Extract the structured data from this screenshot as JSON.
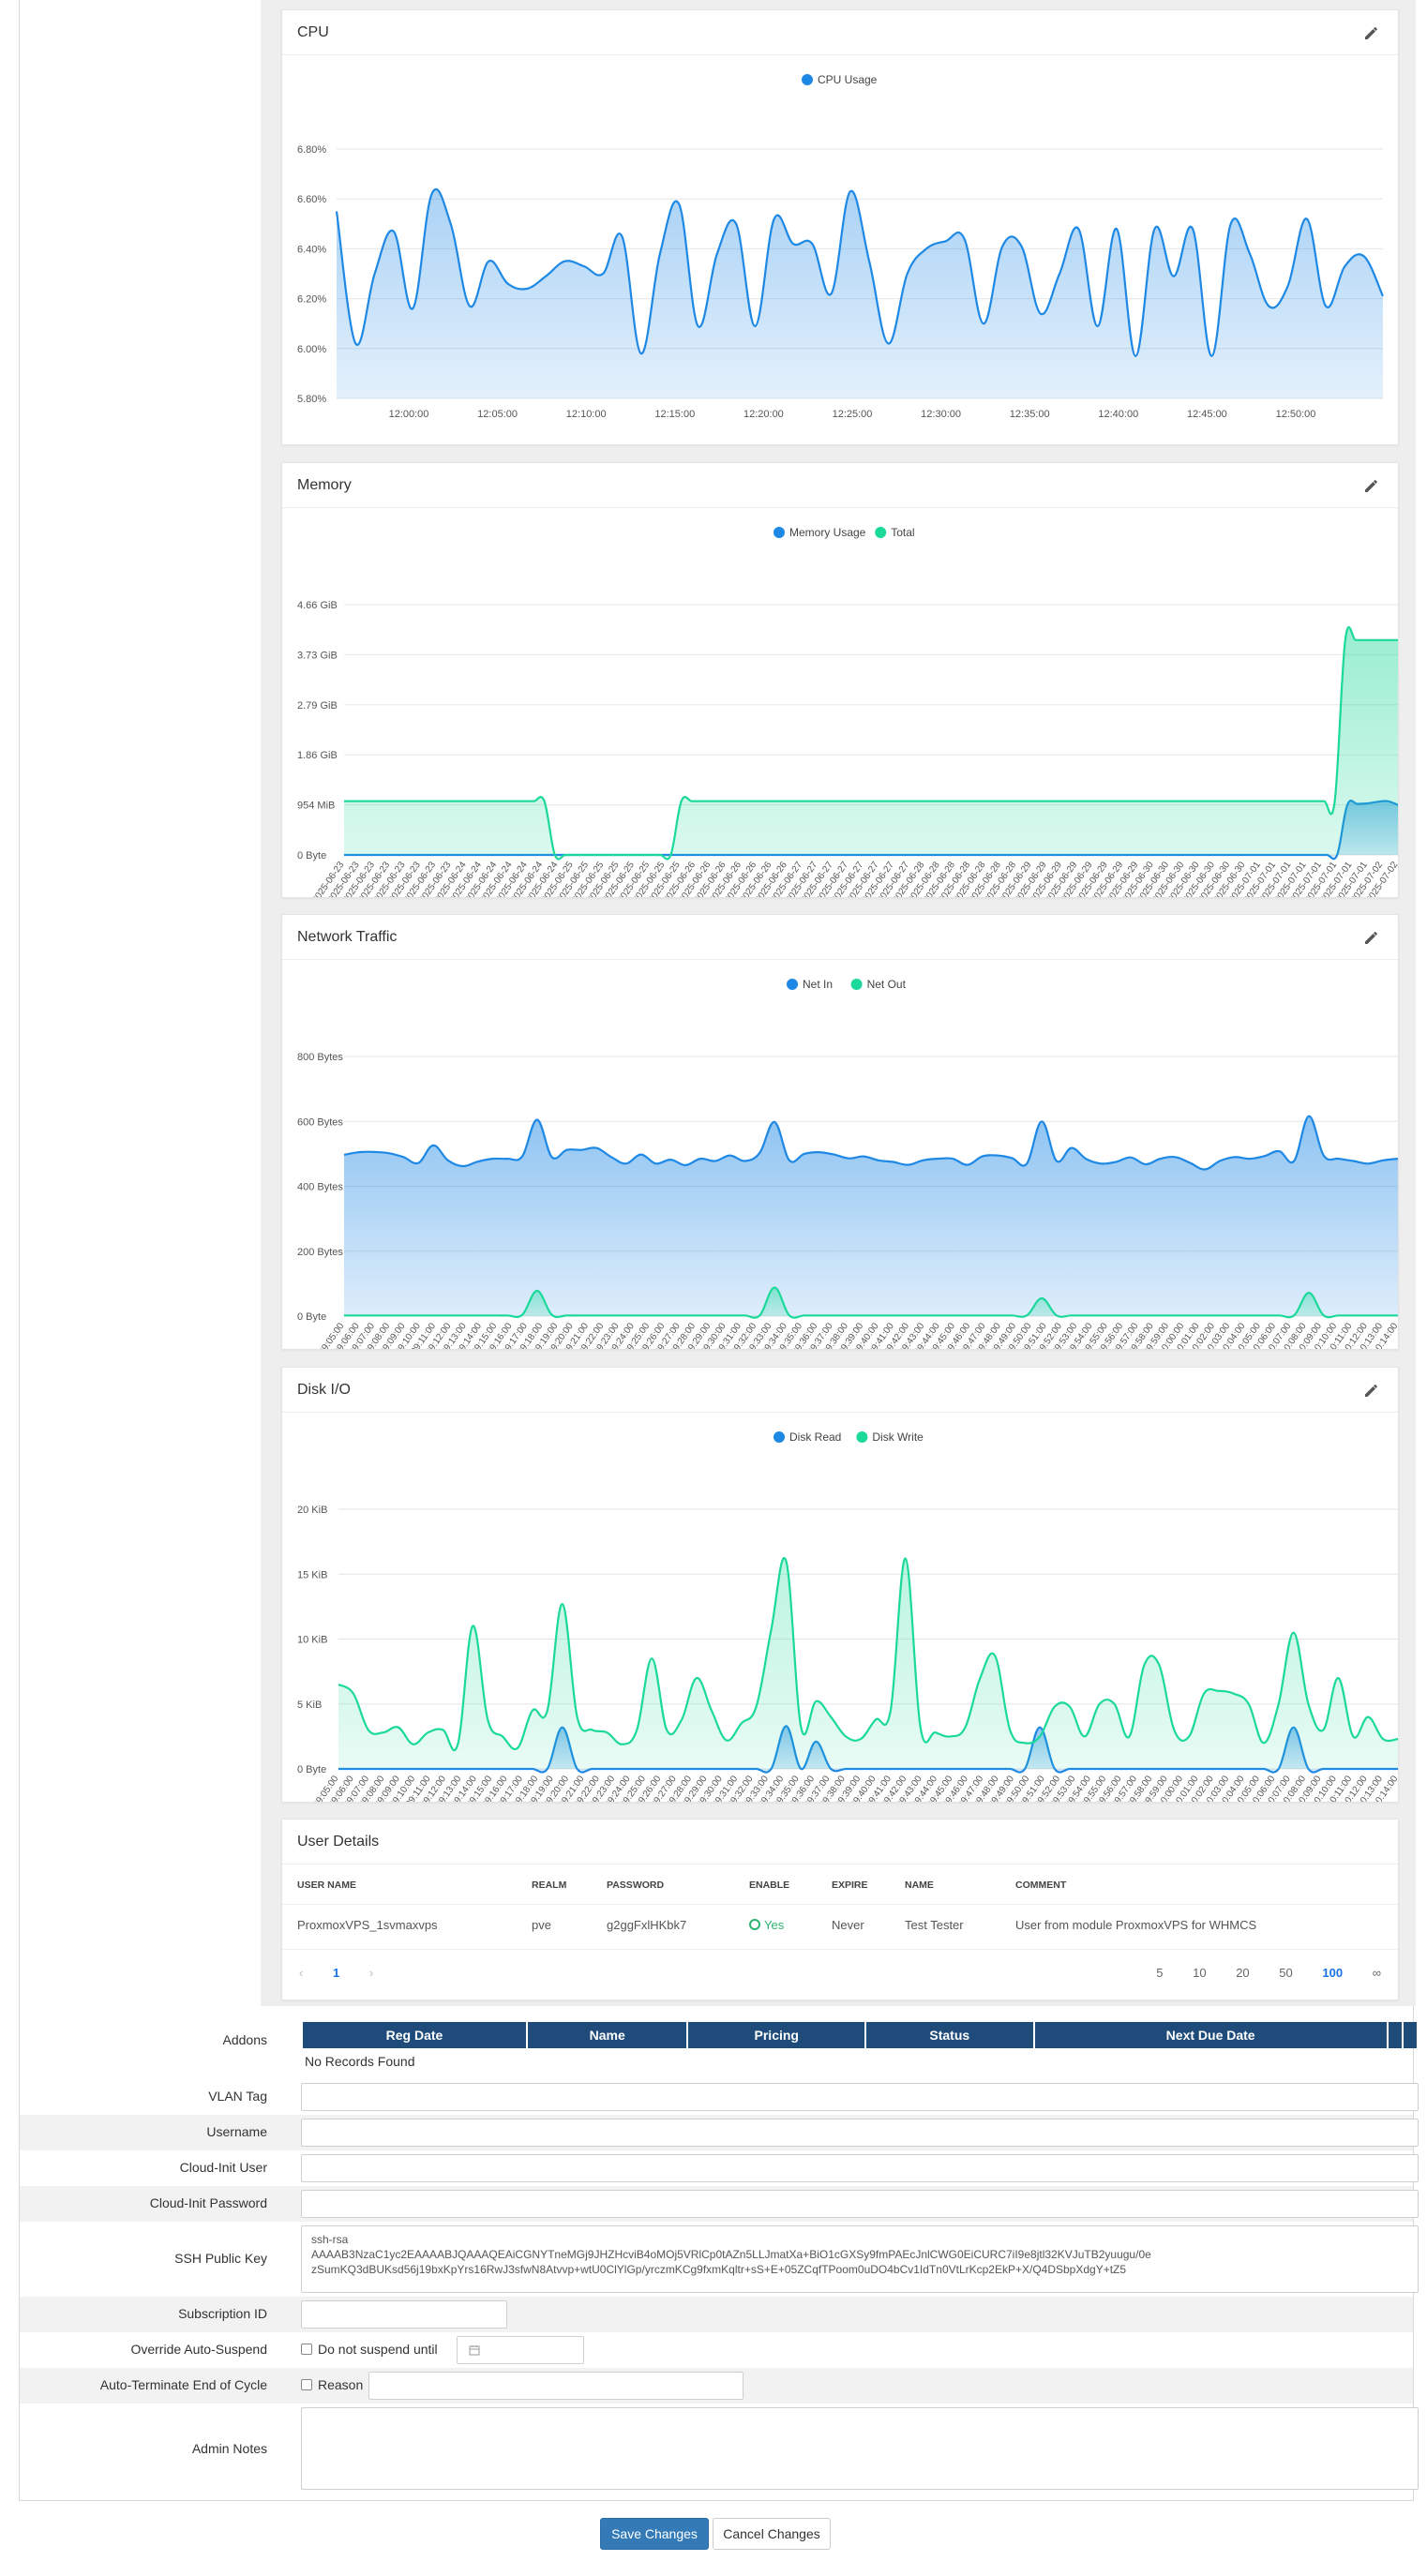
{
  "colors": {
    "blue": "#1e88e5",
    "green": "#1bd99a",
    "header_navy": "#1e4b7a",
    "primary_button": "#337ab7"
  },
  "cpu_card": {
    "title": "CPU",
    "edit_icon": "pencil-icon",
    "chart_data": {
      "type": "area",
      "title": "CPU",
      "series": [
        {
          "name": "CPU Usage",
          "color": "#1e88e5",
          "values": [
            6.55,
            6.02,
            6.3,
            6.47,
            6.16,
            6.62,
            6.5,
            6.17,
            6.35,
            6.26,
            6.24,
            6.29,
            6.35,
            6.33,
            6.3,
            6.45,
            5.98,
            6.38,
            6.58,
            6.09,
            6.38,
            6.5,
            6.09,
            6.52,
            6.42,
            6.42,
            6.22,
            6.63,
            6.35,
            6.02,
            6.3,
            6.4,
            6.43,
            6.44,
            6.1,
            6.41,
            6.41,
            6.14,
            6.3,
            6.48,
            6.09,
            6.48,
            5.97,
            6.48,
            6.29,
            6.48,
            5.97,
            6.5,
            6.38,
            6.17,
            6.25,
            6.52,
            6.17,
            6.33,
            6.37,
            6.21
          ]
        }
      ],
      "x_ticks": [
        "12:00:00",
        "12:05:00",
        "12:10:00",
        "12:15:00",
        "12:20:00",
        "12:25:00",
        "12:30:00",
        "12:35:00",
        "12:40:00",
        "12:45:00",
        "12:50:00"
      ],
      "y_ticks": [
        "5.80%",
        "6.00%",
        "6.20%",
        "6.40%",
        "6.60%",
        "6.80%"
      ],
      "ylim": [
        5.8,
        6.8
      ],
      "grid": true,
      "legend_position": "top"
    }
  },
  "memory_card": {
    "title": "Memory",
    "edit_icon": "pencil-icon",
    "chart_data": {
      "type": "area",
      "title": "Memory",
      "y_ticks": [
        "0 Byte",
        "954 MiB",
        "1.86 GiB",
        "2.79 GiB",
        "3.73 GiB",
        "4.66 GiB"
      ],
      "ylim": [
        0,
        4.66
      ],
      "x_range": [
        "2025-06-23",
        "2025-07-02"
      ],
      "series": [
        {
          "name": "Memory Usage",
          "color": "#1e88e5",
          "unit": "GiB",
          "values": [
            0,
            0,
            0,
            0,
            0,
            0,
            0,
            0,
            0,
            0,
            0,
            0,
            0,
            0,
            0,
            0,
            0,
            0,
            0,
            0,
            0,
            0,
            0,
            0,
            0,
            0,
            0,
            0,
            0,
            0,
            0,
            0,
            0,
            0,
            0,
            0,
            0,
            0,
            0,
            0,
            0,
            0,
            0,
            0,
            0,
            0,
            0,
            0,
            0,
            0,
            0,
            0,
            0,
            0,
            0,
            0,
            0,
            0,
            0,
            0,
            0,
            0,
            0,
            0,
            0,
            0,
            0,
            0,
            0,
            0,
            0,
            0,
            0,
            0,
            0,
            0,
            0,
            0,
            0,
            0,
            0,
            0,
            0,
            0,
            0,
            0,
            0,
            0,
            0,
            0,
            0,
            0,
            0,
            0,
            0,
            0,
            0,
            0,
            0,
            0.93,
            0.95,
            0.96,
            0.99,
            1.0,
            0.93
          ]
        },
        {
          "name": "Total",
          "color": "#1bd99a",
          "unit": "GiB",
          "values": [
            1.0,
            1.0,
            1.0,
            1.0,
            1.0,
            1.0,
            1.0,
            1.0,
            1.0,
            1.0,
            1.0,
            1.0,
            1.0,
            1.0,
            1.0,
            1.0,
            1.0,
            1.0,
            1.0,
            1.0,
            0,
            0,
            0,
            0,
            0,
            0,
            0,
            0,
            0,
            0,
            0,
            0,
            1.0,
            1.0,
            1.0,
            1.0,
            1.0,
            1.0,
            1.0,
            1.0,
            1.0,
            1.0,
            1.0,
            1.0,
            1.0,
            1.0,
            1.0,
            1.0,
            1.0,
            1.0,
            1.0,
            1.0,
            1.0,
            1.0,
            1.0,
            1.0,
            1.0,
            1.0,
            1.0,
            1.0,
            1.0,
            1.0,
            1.0,
            1.0,
            1.0,
            1.0,
            1.0,
            1.0,
            1.0,
            1.0,
            1.0,
            1.0,
            1.0,
            1.0,
            1.0,
            1.0,
            1.0,
            1.0,
            1.0,
            1.0,
            1.0,
            1.0,
            1.0,
            1.0,
            1.0,
            1.0,
            1.0,
            1.0,
            1.0,
            1.0,
            1.0,
            1.0,
            1.0,
            1.0,
            1.0,
            4.0,
            4.0,
            4.0,
            4.0,
            4.0,
            4.0
          ]
        }
      ],
      "grid": true,
      "legend_position": "top"
    }
  },
  "network_card": {
    "title": "Network Traffic",
    "edit_icon": "pencil-icon",
    "chart_data": {
      "type": "area",
      "title": "Network Traffic",
      "y_ticks": [
        "0 Byte",
        "200 Bytes",
        "400 Bytes",
        "600 Bytes",
        "800 Bytes"
      ],
      "ylim": [
        0,
        800
      ],
      "x_range": [
        "09:05:00",
        "10:14:00"
      ],
      "series": [
        {
          "name": "Net In",
          "color": "#1e88e5",
          "values": [
            497,
            505,
            506,
            502,
            490,
            472,
            526,
            480,
            462,
            476,
            485,
            485,
            492,
            605,
            490,
            512,
            512,
            518,
            490,
            470,
            498,
            470,
            482,
            465,
            485,
            478,
            495,
            478,
            503,
            598,
            480,
            500,
            505,
            498,
            486,
            492,
            480,
            475,
            466,
            480,
            485,
            485,
            466,
            492,
            495,
            487,
            470,
            600,
            478,
            518,
            484,
            470,
            475,
            489,
            468,
            485,
            490,
            472,
            452,
            478,
            490,
            485,
            493,
            508,
            478,
            616,
            495,
            485,
            478,
            470,
            480,
            485
          ]
        },
        {
          "name": "Net Out",
          "color": "#1bd99a",
          "values": [
            2,
            2,
            2,
            2,
            2,
            2,
            2,
            2,
            2,
            2,
            2,
            2,
            4,
            78,
            4,
            2,
            2,
            2,
            2,
            2,
            2,
            2,
            2,
            2,
            2,
            2,
            2,
            2,
            2,
            88,
            2,
            2,
            2,
            2,
            2,
            2,
            2,
            2,
            2,
            2,
            2,
            2,
            2,
            2,
            2,
            2,
            2,
            55,
            2,
            2,
            2,
            2,
            2,
            2,
            2,
            2,
            2,
            2,
            2,
            2,
            2,
            2,
            2,
            2,
            2,
            72,
            2,
            2,
            2,
            2,
            2,
            2
          ]
        }
      ],
      "grid": true,
      "legend_position": "top"
    }
  },
  "disk_card": {
    "title": "Disk I/O",
    "edit_icon": "pencil-icon",
    "chart_data": {
      "type": "area",
      "title": "Disk I/O",
      "y_ticks": [
        "0 Byte",
        "5 KiB",
        "10 KiB",
        "15 KiB",
        "20 KiB"
      ],
      "ylim": [
        0,
        20
      ],
      "x_range": [
        "09:05:00",
        "10:14:00"
      ],
      "series": [
        {
          "name": "Disk Read",
          "color": "#1e88e5",
          "unit": "KiB",
          "values": [
            0,
            0,
            0,
            0,
            0,
            0,
            0,
            0,
            0,
            0,
            0,
            0,
            0,
            0,
            0,
            3.2,
            0,
            0,
            0,
            0,
            0,
            0,
            0,
            0,
            0,
            0,
            0,
            0,
            0,
            0,
            3.3,
            0,
            2.1,
            0,
            0,
            0,
            0,
            0,
            0,
            0,
            0,
            0,
            0,
            0,
            0,
            0,
            0,
            3.2,
            0,
            0,
            0,
            0,
            0,
            0,
            0,
            0,
            0,
            0,
            0,
            0,
            0,
            0,
            0,
            0,
            3.2,
            0,
            0,
            0,
            0,
            0,
            0,
            0
          ]
        },
        {
          "name": "Disk Write",
          "color": "#1bd99a",
          "unit": "KiB",
          "values": [
            6.5,
            5.8,
            3.0,
            2.8,
            3.2,
            1.9,
            2.8,
            3.0,
            1.9,
            11.0,
            3.8,
            2.5,
            1.6,
            4.5,
            4.5,
            12.7,
            4.0,
            3.0,
            2.8,
            1.9,
            3.0,
            8.5,
            3.0,
            3.8,
            7.0,
            4.5,
            2.2,
            3.5,
            4.8,
            10.7,
            16.0,
            3.2,
            5.2,
            4.0,
            2.5,
            2.3,
            3.8,
            4.5,
            16.2,
            3.2,
            2.8,
            2.5,
            3.2,
            7.0,
            8.7,
            3.0,
            2.0,
            2.5,
            4.8,
            4.8,
            2.5,
            5.0,
            5.0,
            2.5,
            8.0,
            8.0,
            3.0,
            2.5,
            5.8,
            6.0,
            5.8,
            5.0,
            2.0,
            5.0,
            10.5,
            5.0,
            3.0,
            7.0,
            2.5,
            4.0,
            2.3,
            2.3
          ]
        }
      ],
      "grid": true,
      "legend_position": "top"
    }
  },
  "user_details": {
    "title": "User Details",
    "columns": [
      "USER NAME",
      "REALM",
      "PASSWORD",
      "ENABLE",
      "EXPIRE",
      "NAME",
      "COMMENT"
    ],
    "rows": [
      {
        "user_name": "ProxmoxVPS_1svmaxvps",
        "realm": "pve",
        "password": "g2ggFxlHKbk7",
        "enable": "Yes",
        "expire": "Never",
        "name": "Test Tester",
        "comment": "User from module ProxmoxVPS for WHMCS"
      }
    ],
    "pager": {
      "prev": "‹",
      "page": "1",
      "next": "›",
      "sizes": [
        "5",
        "10",
        "20",
        "50",
        "100",
        "∞"
      ],
      "active_size": "100"
    }
  },
  "form": {
    "addons_label": "Addons",
    "addons_columns": [
      "Reg Date",
      "Name",
      "Pricing",
      "Status",
      "Next Due Date"
    ],
    "addons_empty": "No Records Found",
    "vlan_tag_label": "VLAN Tag",
    "username_label": "Username",
    "cloud_init_user_label": "Cloud-Init User",
    "cloud_init_password_label": "Cloud-Init Password",
    "ssh_key_label": "SSH Public Key",
    "ssh_key_value": "ssh-rsa\nAAAAB3NzaC1yc2EAAAABJQAAAQEAiCGNYTneMGj9JHZHcviB4oMOj5VRlCp0tAZn5LLJmatXa+BiO1cGXSy9fmPAEcJnlCWG0EiCURC7iI9e8jtl32KVJuTB2yuugu/0e\nzSumKQ3dBUKsd56j19bxKpYrs16RwJ3sfwN8Atvvp+wtU0ClYlGp/yrczmKCg9fxmKqltr+sS+E+05ZCqfTPoom0uDO4bCv1IdTn0VtLrKcp2EkP+X/Q4DSbpXdgY+tZ5",
    "subscription_id_label": "Subscription ID",
    "override_suspend_label": "Override Auto-Suspend",
    "do_not_suspend_label": "Do not suspend until",
    "calendar_icon": "calendar-icon",
    "auto_terminate_label": "Auto-Terminate End of Cycle",
    "reason_label": "Reason",
    "admin_notes_label": "Admin Notes",
    "save_label": "Save Changes",
    "cancel_label": "Cancel Changes"
  }
}
